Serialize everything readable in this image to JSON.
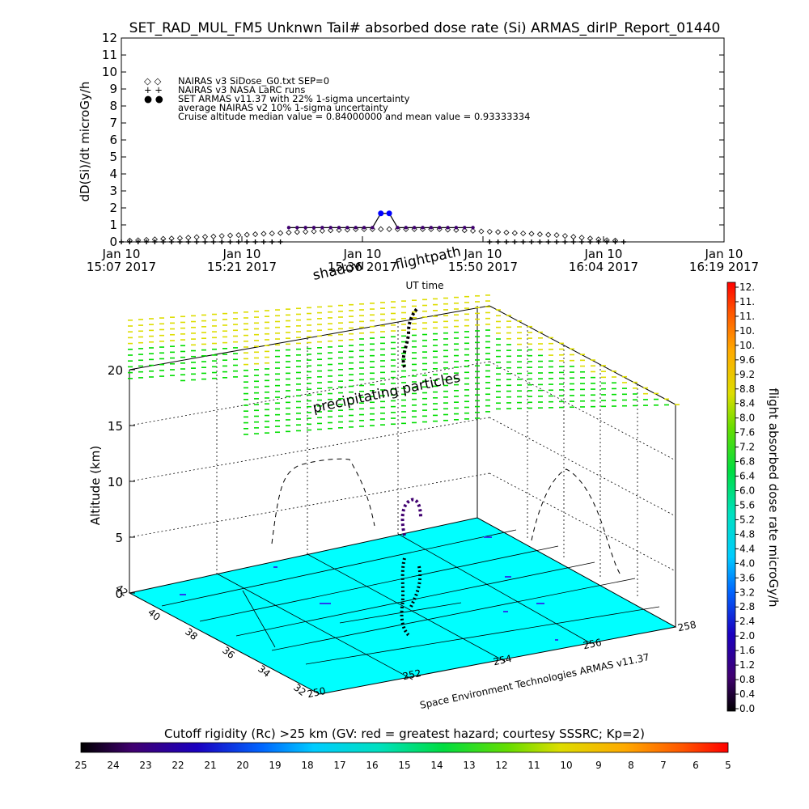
{
  "title": "SET_RAD_MUL_FM5 Unknwn Tail#  absorbed dose rate (Si) ARMAS_dirIP_Report_01440",
  "colors": {
    "ground": "#00ffff",
    "measured": "#0000ff",
    "nairas": "#000000",
    "plot_line": "#000000",
    "green_particles": "#00dd00",
    "yellow_particles": "#dddd00"
  },
  "chart_data": [
    {
      "type": "line",
      "title": "",
      "xlabel": "UT time",
      "ylabel": "dD(Si)/dt microGy/h",
      "ylim": [
        0,
        12
      ],
      "yticks": [
        "0",
        "1",
        "2",
        "3",
        "4",
        "5",
        "6",
        "7",
        "8",
        "9",
        "10",
        "11",
        "12"
      ],
      "xlim": [
        "15:07",
        "16:19"
      ],
      "xticks": [
        {
          "line1": "Jan 10",
          "line2": "15:07 2017",
          "t": 0
        },
        {
          "line1": "Jan 10",
          "line2": "15:21 2017",
          "t": 14.4
        },
        {
          "line1": "Jan 10",
          "line2": "15:36 2017",
          "t": 28.8
        },
        {
          "line1": "Jan 10",
          "line2": "15:50 2017",
          "t": 43.2
        },
        {
          "line1": "Jan 10",
          "line2": "16:04 2017",
          "t": 57.6
        },
        {
          "line1": "Jan 10",
          "line2": "16:19 2017",
          "t": 72
        }
      ],
      "legend": [
        {
          "symbol": "◇ ◇",
          "text": "NAIRAS v3 SiDose_G0.txt SEP=0"
        },
        {
          "symbol": "+ +",
          "text": "NAIRAS v3 NASA LaRC runs"
        },
        {
          "symbol": "● ●",
          "text": "SET ARMAS v11.37 with 22% 1-sigma uncertainty"
        },
        {
          "symbol": "",
          "text": "average NAIRAS v2 10% 1-sigma uncertainty"
        },
        {
          "symbol": "",
          "text": "Cruise altitude median value = 0.84000000 and mean value = 0.93333334"
        }
      ],
      "series": [
        {
          "name": "NAIRAS v3 SiDose_G0.txt SEP=0",
          "x_minutes": [
            1,
            2,
            3,
            4,
            5,
            6,
            7,
            8,
            9,
            10,
            11,
            12,
            13,
            14,
            15,
            16,
            17,
            18,
            19,
            20,
            21,
            22,
            23,
            24,
            25,
            26,
            27,
            28,
            29,
            30,
            31,
            32,
            33,
            34,
            35,
            36,
            37,
            38,
            39,
            40,
            41,
            42,
            43,
            44,
            45,
            46,
            47,
            48,
            49,
            50,
            51,
            52,
            53,
            54,
            55,
            56,
            57,
            58,
            59
          ],
          "values": [
            0.08,
            0.1,
            0.12,
            0.15,
            0.18,
            0.2,
            0.22,
            0.25,
            0.28,
            0.3,
            0.32,
            0.35,
            0.38,
            0.4,
            0.42,
            0.45,
            0.48,
            0.5,
            0.52,
            0.55,
            0.58,
            0.6,
            0.62,
            0.65,
            0.68,
            0.7,
            0.72,
            0.75,
            0.75,
            0.75,
            0.75,
            0.75,
            0.75,
            0.75,
            0.75,
            0.75,
            0.75,
            0.75,
            0.72,
            0.7,
            0.68,
            0.65,
            0.62,
            0.6,
            0.58,
            0.55,
            0.52,
            0.5,
            0.48,
            0.45,
            0.42,
            0.4,
            0.35,
            0.3,
            0.25,
            0.2,
            0.15,
            0.1,
            0.08
          ]
        },
        {
          "name": "SET ARMAS v11.37 with 22% 1-sigma uncertainty",
          "x_minutes": [
            20,
            21,
            22,
            23,
            24,
            25,
            26,
            27,
            28,
            29,
            30,
            31,
            32,
            33,
            34,
            35,
            36,
            37,
            38,
            39,
            40,
            41,
            42
          ],
          "values": [
            0.84,
            0.84,
            0.84,
            0.84,
            0.84,
            0.84,
            0.84,
            0.84,
            0.84,
            0.84,
            0.84,
            1.68,
            1.68,
            0.84,
            0.84,
            0.84,
            0.84,
            0.84,
            0.84,
            0.84,
            0.84,
            0.84,
            0.84
          ]
        },
        {
          "name": "NAIRAS v3 NASA LaRC runs",
          "x_minutes": [
            0,
            1,
            2,
            3,
            4,
            5,
            6,
            7,
            8,
            9,
            10,
            11,
            12,
            13,
            14,
            15,
            16,
            17,
            18,
            19,
            44,
            45,
            46,
            47,
            48,
            49,
            50,
            51,
            52,
            53,
            54,
            55,
            56,
            57,
            58,
            59,
            60
          ],
          "values": [
            0,
            0,
            0,
            0,
            0,
            0,
            0,
            0,
            0,
            0,
            0,
            0,
            0,
            0,
            0,
            0,
            0,
            0,
            0,
            0,
            0,
            0,
            0,
            0,
            0,
            0,
            0,
            0,
            0,
            0,
            0,
            0,
            0,
            0,
            0,
            0,
            0
          ]
        }
      ]
    },
    {
      "type": "3d-surface",
      "title": "",
      "zlabel": "Altitude (km)",
      "zticks": [
        "0",
        "5",
        "10",
        "15",
        "20"
      ],
      "zlim": [
        0,
        20
      ],
      "lat_ticks": [
        "42",
        "40",
        "38",
        "36",
        "34",
        "32"
      ],
      "lon_ticks": [
        "250",
        "252",
        "254",
        "256",
        "258"
      ],
      "annotations": [
        "shadow",
        "flightpath",
        "precipitating particles"
      ],
      "credit": "Space Environment Technologies ARMAS v11.37",
      "colorbar": {
        "label": "flight absorbed dose rate microGy/h",
        "min": 0.0,
        "max": 12.0,
        "ticks": [
          "0.0",
          "0.4",
          "0.8",
          "1.2",
          "1.6",
          "2.0",
          "2.4",
          "2.8",
          "3.2",
          "3.6",
          "4.0",
          "4.4",
          "4.8",
          "5.2",
          "5.6",
          "6.0",
          "6.4",
          "6.8",
          "7.2",
          "7.6",
          "8.0",
          "8.4",
          "8.8",
          "9.2",
          "9.6",
          "10.",
          "10.",
          "11.",
          "11.",
          "12."
        ]
      },
      "rigidity_bar": {
        "label": "Cutoff rigidity (Rc) >25 km (GV: red = greatest hazard; courtesy SSSRC; Kp=2)",
        "ticks": [
          "25",
          "24",
          "23",
          "22",
          "21",
          "20",
          "19",
          "18",
          "17",
          "16",
          "15",
          "14",
          "13",
          "12",
          "11",
          "10",
          "9",
          "8",
          "7",
          "6",
          "5"
        ]
      }
    }
  ]
}
